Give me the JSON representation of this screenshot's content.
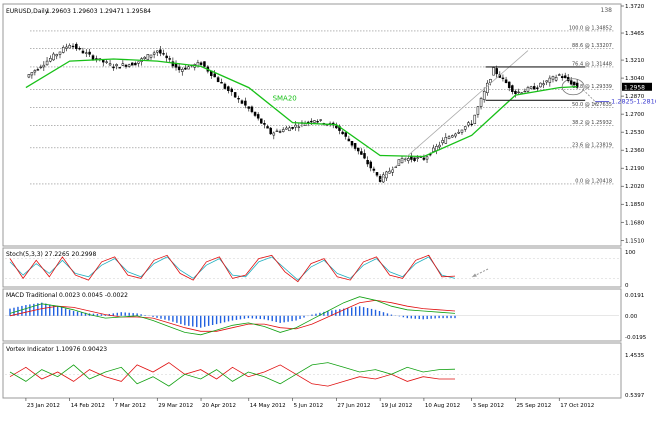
{
  "chart_data": {
    "type": "line",
    "symbol_caption": "EURUSD,Daily",
    "ohlc_caption": "1.29603 1.29603 1.29471 1.29584",
    "price_axis": {
      "ylim": [
        1.1475,
        1.372
      ],
      "tick_labels": [
        "1.3720",
        "1.3465",
        "1.3210",
        "1.3040",
        "1.2870",
        "1.2700",
        "1.2530",
        "1.2360",
        "1.2190",
        "1.2020",
        "1.1850",
        "1.1680",
        "1.1510"
      ]
    },
    "current_price_label": "1.2958",
    "x_tick_labels": [
      "23 Jan 2012",
      "14 Feb 2012",
      "7 Mar 2012",
      "29 Mar 2012",
      "20 Apr 2012",
      "14 May 2012",
      "5 Jun 2012",
      "27 Jun 2012",
      "19 Jul 2012",
      "10 Aug 2012",
      "3 Sep 2012",
      "25 Sep 2012",
      "17 Oct 2012"
    ],
    "price_series": [
      {
        "date": "23 Jan 2012",
        "close": 1.305
      },
      {
        "date": "1 Feb 2012",
        "close": 1.318
      },
      {
        "date": "14 Feb 2012",
        "close": 1.336
      },
      {
        "date": "24 Feb 2012",
        "close": 1.325
      },
      {
        "date": "7 Mar 2012",
        "close": 1.315
      },
      {
        "date": "18 Mar 2012",
        "close": 1.318
      },
      {
        "date": "29 Mar 2012",
        "close": 1.33
      },
      {
        "date": "9 Apr 2012",
        "close": 1.312
      },
      {
        "date": "20 Apr 2012",
        "close": 1.318
      },
      {
        "date": "2 May 2012",
        "close": 1.295
      },
      {
        "date": "14 May 2012",
        "close": 1.275
      },
      {
        "date": "25 May 2012",
        "close": 1.252
      },
      {
        "date": "5 Jun 2012",
        "close": 1.258
      },
      {
        "date": "16 Jun 2012",
        "close": 1.265
      },
      {
        "date": "27 Jun 2012",
        "close": 1.258
      },
      {
        "date": "8 Jul 2012",
        "close": 1.235
      },
      {
        "date": "19 Jul 2012",
        "close": 1.208
      },
      {
        "date": "30 Jul 2012",
        "close": 1.228
      },
      {
        "date": "10 Aug 2012",
        "close": 1.228
      },
      {
        "date": "21 Aug 2012",
        "close": 1.247
      },
      {
        "date": "3 Sep 2012",
        "close": 1.262
      },
      {
        "date": "14 Sep 2012",
        "close": 1.312
      },
      {
        "date": "25 Sep 2012",
        "close": 1.29
      },
      {
        "date": "6 Oct 2012",
        "close": 1.296
      },
      {
        "date": "17 Oct 2012",
        "close": 1.307
      },
      {
        "date": "26 Oct 2012",
        "close": 1.2958
      }
    ],
    "sma": {
      "label": "SMA20",
      "values": [
        {
          "date": "23 Jan 2012",
          "value": 1.295
        },
        {
          "date": "14 Feb 2012",
          "value": 1.32
        },
        {
          "date": "7 Mar 2012",
          "value": 1.322
        },
        {
          "date": "29 Mar 2012",
          "value": 1.32
        },
        {
          "date": "20 Apr 2012",
          "value": 1.315
        },
        {
          "date": "14 May 2012",
          "value": 1.295
        },
        {
          "date": "5 Jun 2012",
          "value": 1.262
        },
        {
          "date": "27 Jun 2012",
          "value": 1.26
        },
        {
          "date": "19 Jul 2012",
          "value": 1.231
        },
        {
          "date": "10 Aug 2012",
          "value": 1.23
        },
        {
          "date": "3 Sep 2012",
          "value": 1.25
        },
        {
          "date": "25 Sep 2012",
          "value": 1.288
        },
        {
          "date": "17 Oct 2012",
          "value": 1.295
        },
        {
          "date": "26 Oct 2012",
          "value": 1.296
        }
      ]
    },
    "fibonacci": [
      {
        "ratio": "100.0",
        "price": "1.34852",
        "label": "100.0 @ 1.34852"
      },
      {
        "ratio": "88.6",
        "price": "1.33207",
        "label": "88.6 @ 1.33207"
      },
      {
        "ratio": "76.4",
        "price": "1.31448",
        "label": "76.4 @ 1.31448"
      },
      {
        "ratio": "61.8",
        "price": "1.29339",
        "label": "61.8 @ 1.29339"
      },
      {
        "ratio": "50.0",
        "price": "1.27635",
        "label": "50.0 @ 1.27635"
      },
      {
        "ratio": "38.2",
        "price": "1.25932",
        "label": "38.2 @ 1.25932"
      },
      {
        "ratio": "23.6",
        "price": "1.23819",
        "label": "23.6 @ 1.23819"
      },
      {
        "ratio": "0.0",
        "price": "1.20418",
        "label": "0.0 @ 1.20418"
      }
    ],
    "fib_top_label": "138",
    "channel": {
      "upper": 1.3145,
      "lower": 1.283
    },
    "annotation_zone": "1.2825-1.2810",
    "stoch": {
      "caption": "Stoch(5,3,3) 27.2265 20.2998",
      "ylim": [
        0,
        100
      ],
      "tick_labels": [
        "100",
        "0"
      ],
      "k": [
        80,
        20,
        75,
        25,
        85,
        30,
        15,
        70,
        85,
        30,
        20,
        75,
        90,
        35,
        15,
        70,
        85,
        20,
        30,
        80,
        90,
        40,
        10,
        65,
        80,
        25,
        15,
        70,
        85,
        30,
        20,
        75,
        90,
        25,
        27
      ],
      "d": [
        70,
        30,
        65,
        35,
        75,
        35,
        25,
        60,
        80,
        40,
        25,
        65,
        85,
        45,
        20,
        60,
        80,
        30,
        25,
        70,
        85,
        50,
        15,
        55,
        75,
        35,
        20,
        60,
        80,
        40,
        25,
        65,
        85,
        30,
        20
      ]
    },
    "macd": {
      "caption": "MACD Traditional 0.0023 0.0045 -0.0022",
      "tick_labels": [
        "0.0191",
        "0.00",
        "-0.0195"
      ],
      "histogram": [
        0.006,
        0.009,
        0.011,
        0.008,
        0.004,
        0.002,
        0.001,
        0.003,
        0.002,
        -0.001,
        -0.004,
        -0.008,
        -0.01,
        -0.007,
        -0.004,
        -0.002,
        -0.003,
        -0.006,
        -0.004,
        0.001,
        0.004,
        0.006,
        0.008,
        0.005,
        0.001,
        -0.002,
        -0.003,
        -0.002,
        -0.002
      ],
      "macd_line": [
        0.002,
        0.006,
        0.01,
        0.008,
        0.005,
        0.001,
        -0.002,
        -0.001,
        0.0,
        -0.004,
        -0.009,
        -0.014,
        -0.016,
        -0.012,
        -0.008,
        -0.006,
        -0.009,
        -0.014,
        -0.01,
        -0.003,
        0.004,
        0.011,
        0.016,
        0.013,
        0.008,
        0.005,
        0.004,
        0.003,
        0.002
      ],
      "signal_line": [
        0.0,
        0.003,
        0.006,
        0.008,
        0.007,
        0.004,
        0.001,
        -0.001,
        -0.001,
        -0.002,
        -0.006,
        -0.01,
        -0.013,
        -0.013,
        -0.01,
        -0.007,
        -0.007,
        -0.01,
        -0.011,
        -0.007,
        -0.001,
        0.005,
        0.011,
        0.013,
        0.011,
        0.008,
        0.006,
        0.005,
        0.004
      ]
    },
    "vortex": {
      "caption": "Vortex Indicator 1.10976 0.90423",
      "tick_labels": [
        "1.4535",
        "0.5397"
      ],
      "plus": [
        1.05,
        0.85,
        1.1,
        0.95,
        1.2,
        0.9,
        1.05,
        1.15,
        0.8,
        0.95,
        0.75,
        1.0,
        0.9,
        1.1,
        0.85,
        1.05,
        0.95,
        0.8,
        1.0,
        1.2,
        1.25,
        1.15,
        1.05,
        1.1,
        1.0,
        1.15,
        1.05,
        1.1,
        1.11
      ],
      "minus": [
        0.95,
        1.15,
        0.9,
        1.05,
        0.85,
        1.1,
        0.95,
        0.85,
        1.2,
        1.05,
        1.25,
        1.0,
        1.1,
        0.9,
        1.15,
        0.95,
        1.05,
        1.2,
        1.0,
        0.8,
        0.75,
        0.85,
        0.95,
        0.9,
        1.0,
        0.85,
        0.95,
        0.9,
        0.9
      ]
    },
    "colors": {
      "candle": "#000000",
      "sma": "#18c018",
      "fib": "#888888",
      "grid": "#cfcfcf",
      "annotation": "#3a3ad0",
      "stoch_k": "#e01010",
      "stoch_d": "#20b0c0",
      "macd_hist": "#2060e0",
      "macd_line": "#10a010",
      "signal_line": "#e01010",
      "vortex_plus": "#10a010",
      "vortex_minus": "#e01010",
      "price_box": "#000000"
    }
  }
}
